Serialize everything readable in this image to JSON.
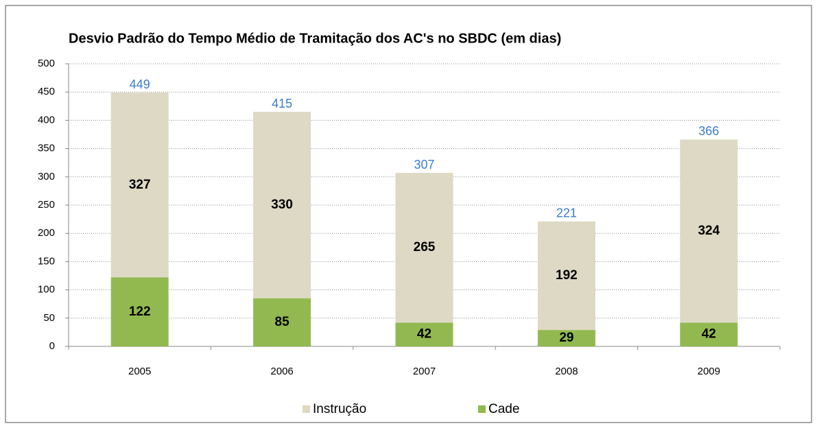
{
  "chart_data": {
    "type": "stacked_bar",
    "title": "Desvio Padrão do Tempo Médio de Tramitação dos AC's no SBDC (em dias)",
    "categories": [
      "2005",
      "2006",
      "2007",
      "2008",
      "2009"
    ],
    "series": [
      {
        "name": "Cade",
        "color": "#92b94f",
        "values": [
          122,
          85,
          42,
          29,
          42
        ]
      },
      {
        "name": "Instrução",
        "color": "#ddd9c4",
        "values": [
          327,
          330,
          265,
          192,
          324
        ]
      }
    ],
    "totals": [
      449,
      415,
      307,
      221,
      366
    ],
    "totals_color": "#3d7cc9",
    "ylim": [
      0,
      500
    ],
    "yticks": [
      0,
      50,
      100,
      150,
      200,
      250,
      300,
      350,
      400,
      450,
      500
    ],
    "grid": true,
    "legend": "bottom"
  }
}
